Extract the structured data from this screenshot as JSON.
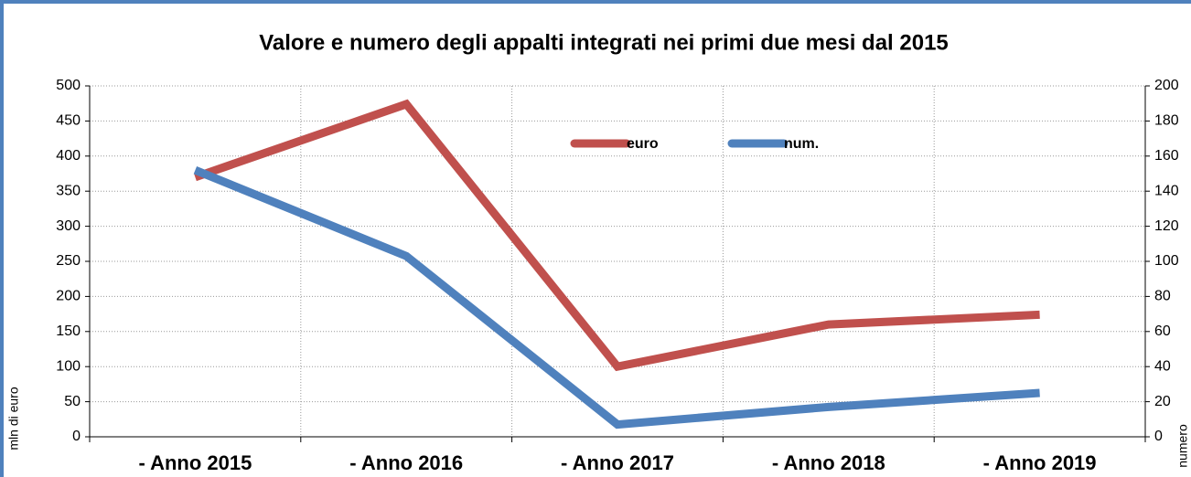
{
  "chart_data": {
    "type": "line",
    "title": "Valore e numero degli appalti integrati nei primi due mesi dal 2015",
    "categories": [
      "- Anno 2015",
      "- Anno 2016",
      "- Anno 2017",
      "- Anno 2018",
      "- Anno 2019"
    ],
    "series": [
      {
        "name": "euro",
        "color": "#c0504d",
        "values": [
          370,
          474,
          100,
          160,
          174
        ]
      },
      {
        "name": "num.",
        "color": "#4f81bd",
        "axis": "y2",
        "values": [
          152,
          103,
          7,
          17,
          25
        ]
      }
    ],
    "ylabel": "mln di  euro",
    "y2label": "numero",
    "ylim": [
      0,
      500
    ],
    "yticks": [
      0,
      50,
      100,
      150,
      200,
      250,
      300,
      350,
      400,
      450,
      500
    ],
    "y2lim": [
      0,
      200
    ],
    "y2ticks": [
      0,
      20,
      40,
      60,
      80,
      100,
      120,
      140,
      160,
      180,
      200
    ],
    "grid": true,
    "legend": "top"
  }
}
